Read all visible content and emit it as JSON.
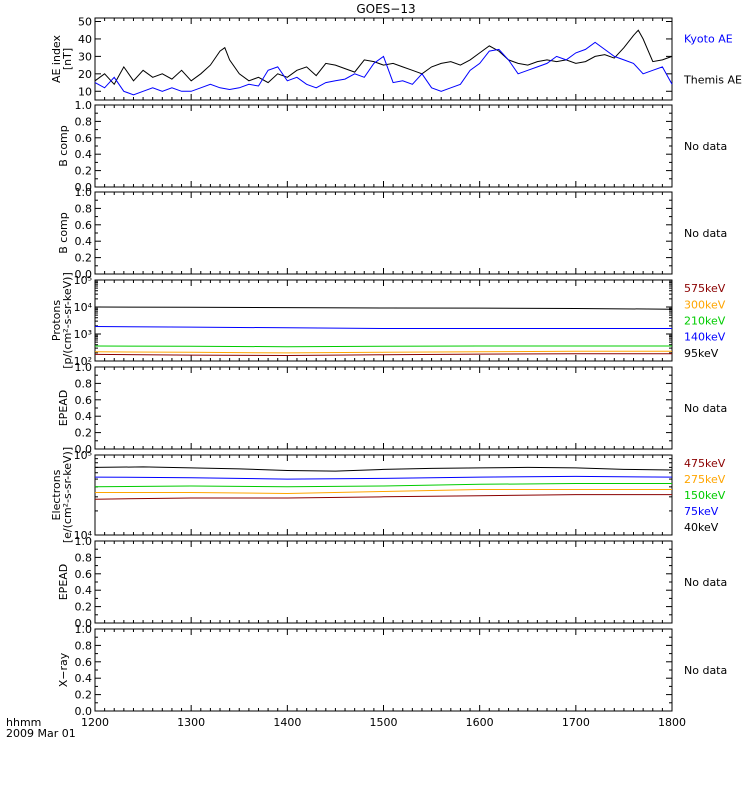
{
  "title": "GOES−13",
  "time_axis": {
    "label_line1": "hhmm",
    "label_line2": "2009 Mar 01",
    "ticks": [
      "1200",
      "1300",
      "1400",
      "1500",
      "1600",
      "1700",
      "1800"
    ],
    "range": [
      1200,
      1800
    ]
  },
  "panels": [
    {
      "id": "ae",
      "ylabel": [
        "AE index",
        "[nT]"
      ],
      "scale": "linear",
      "ylim": [
        5,
        52
      ],
      "ticks": [
        "10",
        "20",
        "30",
        "40",
        "50"
      ],
      "tick_values": [
        10,
        20,
        30,
        40,
        50
      ],
      "legend": [
        {
          "text": "Kyoto AE",
          "color": "#0000ff"
        },
        {
          "text": "Themis AE",
          "color": "#000000"
        }
      ],
      "no_data": ""
    },
    {
      "id": "bcomp1",
      "ylabel": [
        "B comp"
      ],
      "scale": "linear",
      "ylim": [
        0,
        1
      ],
      "ticks": [
        "0.0",
        "0.2",
        "0.4",
        "0.6",
        "0.8",
        "1.0"
      ],
      "tick_values": [
        0.0,
        0.2,
        0.4,
        0.6,
        0.8,
        1.0
      ],
      "legend": [],
      "no_data": "No data"
    },
    {
      "id": "bcomp2",
      "ylabel": [
        "B comp"
      ],
      "scale": "linear",
      "ylim": [
        0,
        1
      ],
      "ticks": [
        "0.0",
        "0.2",
        "0.4",
        "0.6",
        "0.8",
        "1.0"
      ],
      "tick_values": [
        0.0,
        0.2,
        0.4,
        0.6,
        0.8,
        1.0
      ],
      "legend": [],
      "no_data": "No data"
    },
    {
      "id": "protons",
      "ylabel": [
        "Protons",
        "[p/(cm²-s-sr-keV)]"
      ],
      "scale": "log",
      "ylim": [
        100,
        100000
      ],
      "ticks": [
        "10²",
        "10³",
        "10⁴",
        "10⁵"
      ],
      "tick_values": [
        100,
        1000,
        10000,
        100000
      ],
      "legend": [
        {
          "text": "575keV",
          "color": "#8b0000"
        },
        {
          "text": "300keV",
          "color": "#ffa500"
        },
        {
          "text": "210keV",
          "color": "#00cc00"
        },
        {
          "text": "140keV",
          "color": "#0000ff"
        },
        {
          "text": "95keV",
          "color": "#000000"
        }
      ],
      "no_data": ""
    },
    {
      "id": "epead1",
      "ylabel": [
        "EPEAD"
      ],
      "scale": "linear",
      "ylim": [
        0,
        1
      ],
      "ticks": [
        "0.0",
        "0.2",
        "0.4",
        "0.6",
        "0.8",
        "1.0"
      ],
      "tick_values": [
        0.0,
        0.2,
        0.4,
        0.6,
        0.8,
        1.0
      ],
      "legend": [],
      "no_data": "No data"
    },
    {
      "id": "electrons",
      "ylabel": [
        "Electrons",
        "[e/(cm²-s-sr-keV)]"
      ],
      "scale": "log",
      "ylim": [
        10000,
        100000
      ],
      "ticks": [
        "10⁴",
        "10⁵"
      ],
      "tick_values": [
        10000,
        100000
      ],
      "legend": [
        {
          "text": "475keV",
          "color": "#8b0000"
        },
        {
          "text": "275keV",
          "color": "#ffa500"
        },
        {
          "text": "150keV",
          "color": "#00cc00"
        },
        {
          "text": "75keV",
          "color": "#0000ff"
        },
        {
          "text": "40keV",
          "color": "#000000"
        }
      ],
      "no_data": ""
    },
    {
      "id": "epead2",
      "ylabel": [
        "EPEAD"
      ],
      "scale": "linear",
      "ylim": [
        0,
        1
      ],
      "ticks": [
        "0.0",
        "0.2",
        "0.4",
        "0.6",
        "0.8",
        "1.0"
      ],
      "tick_values": [
        0.0,
        0.2,
        0.4,
        0.6,
        0.8,
        1.0
      ],
      "legend": [],
      "no_data": "No data"
    },
    {
      "id": "xray",
      "ylabel": [
        "X−ray"
      ],
      "scale": "linear",
      "ylim": [
        0,
        1
      ],
      "ticks": [
        "0.0",
        "0.2",
        "0.4",
        "0.6",
        "0.8",
        "1.0"
      ],
      "tick_values": [
        0.0,
        0.2,
        0.4,
        0.6,
        0.8,
        1.0
      ],
      "legend": [],
      "no_data": "No data"
    }
  ],
  "chart_data": [
    {
      "type": "line",
      "panel": "ae",
      "title": "GOES−13",
      "ylabel": "AE index [nT]",
      "ylim": [
        5,
        52
      ],
      "xlim": [
        1200,
        1800
      ],
      "series": [
        {
          "name": "Themis AE",
          "color": "#000000",
          "x": [
            1200,
            1210,
            1220,
            1230,
            1240,
            1250,
            1260,
            1270,
            1280,
            1290,
            1300,
            1310,
            1320,
            1330,
            1335,
            1340,
            1350,
            1360,
            1370,
            1380,
            1390,
            1400,
            1410,
            1420,
            1430,
            1440,
            1450,
            1460,
            1470,
            1480,
            1490,
            1500,
            1510,
            1520,
            1530,
            1540,
            1550,
            1560,
            1570,
            1580,
            1590,
            1600,
            1610,
            1620,
            1630,
            1640,
            1650,
            1660,
            1670,
            1680,
            1690,
            1700,
            1710,
            1720,
            1730,
            1740,
            1750,
            1760,
            1765,
            1770,
            1780,
            1790,
            1800
          ],
          "y": [
            16,
            20,
            14,
            24,
            16,
            22,
            18,
            20,
            17,
            22,
            16,
            20,
            25,
            33,
            35,
            28,
            20,
            16,
            18,
            15,
            20,
            18,
            22,
            24,
            19,
            26,
            25,
            23,
            21,
            28,
            27,
            25,
            26,
            24,
            22,
            20,
            24,
            26,
            27,
            25,
            28,
            32,
            36,
            33,
            28,
            26,
            25,
            27,
            28,
            27,
            28,
            26,
            27,
            30,
            31,
            29,
            35,
            42,
            45,
            40,
            27,
            28,
            30
          ]
        },
        {
          "name": "Kyoto AE",
          "color": "#0000ff",
          "x": [
            1200,
            1210,
            1220,
            1230,
            1240,
            1250,
            1260,
            1270,
            1280,
            1290,
            1300,
            1310,
            1320,
            1330,
            1340,
            1350,
            1360,
            1370,
            1380,
            1390,
            1400,
            1410,
            1420,
            1430,
            1440,
            1450,
            1460,
            1470,
            1480,
            1490,
            1500,
            1510,
            1520,
            1530,
            1540,
            1550,
            1560,
            1570,
            1580,
            1590,
            1600,
            1610,
            1620,
            1630,
            1640,
            1650,
            1660,
            1670,
            1680,
            1690,
            1700,
            1710,
            1720,
            1730,
            1740,
            1750,
            1760,
            1770,
            1780,
            1790,
            1800
          ],
          "y": [
            15,
            12,
            18,
            10,
            8,
            10,
            12,
            10,
            12,
            10,
            10,
            12,
            14,
            12,
            11,
            12,
            14,
            13,
            22,
            24,
            16,
            18,
            14,
            12,
            15,
            16,
            17,
            20,
            18,
            26,
            30,
            15,
            16,
            14,
            20,
            12,
            10,
            12,
            14,
            22,
            26,
            33,
            34,
            28,
            20,
            22,
            24,
            26,
            30,
            28,
            32,
            34,
            38,
            34,
            30,
            28,
            26,
            20,
            22,
            24,
            14
          ]
        }
      ]
    },
    {
      "type": "line",
      "panel": "protons",
      "ylabel": "Protons [p/(cm²-s-sr-keV)]",
      "scale": "log",
      "ylim": [
        100,
        100000
      ],
      "xlim": [
        1200,
        1800
      ],
      "series": [
        {
          "name": "95keV",
          "color": "#000000",
          "x": [
            1200,
            1300,
            1400,
            1500,
            1600,
            1700,
            1800
          ],
          "y": [
            10000,
            9800,
            9500,
            9200,
            9100,
            8800,
            8300
          ]
        },
        {
          "name": "140keV",
          "color": "#0000ff",
          "x": [
            1200,
            1300,
            1400,
            1500,
            1600,
            1700,
            1800
          ],
          "y": [
            1900,
            1800,
            1700,
            1600,
            1600,
            1600,
            1600
          ]
        },
        {
          "name": "210keV",
          "color": "#00cc00",
          "x": [
            1200,
            1300,
            1400,
            1500,
            1600,
            1700,
            1800
          ],
          "y": [
            360,
            350,
            340,
            350,
            360,
            360,
            360
          ]
        },
        {
          "name": "300keV",
          "color": "#ffa500",
          "x": [
            1200,
            1300,
            1400,
            1500,
            1600,
            1700,
            1800
          ],
          "y": [
            220,
            210,
            200,
            210,
            220,
            230,
            230
          ]
        },
        {
          "name": "575keV",
          "color": "#8b0000",
          "x": [
            1200,
            1300,
            1400,
            1500,
            1600,
            1700,
            1800
          ],
          "y": [
            175,
            165,
            160,
            170,
            180,
            185,
            185
          ]
        }
      ]
    },
    {
      "type": "line",
      "panel": "electrons",
      "ylabel": "Electrons [e/(cm²-s-sr-keV)]",
      "scale": "log",
      "ylim": [
        10000,
        100000
      ],
      "xlim": [
        1200,
        1800
      ],
      "series": [
        {
          "name": "40keV",
          "color": "#000000",
          "x": [
            1200,
            1250,
            1300,
            1350,
            1400,
            1450,
            1500,
            1550,
            1600,
            1650,
            1700,
            1750,
            1800
          ],
          "y": [
            70000,
            71000,
            69000,
            67000,
            64000,
            63000,
            66000,
            68000,
            69000,
            70000,
            69000,
            66000,
            65000
          ]
        },
        {
          "name": "75keV",
          "color": "#0000ff",
          "x": [
            1200,
            1300,
            1400,
            1500,
            1600,
            1700,
            1800
          ],
          "y": [
            53000,
            52000,
            50000,
            51000,
            53000,
            54000,
            53000
          ]
        },
        {
          "name": "150keV",
          "color": "#00cc00",
          "x": [
            1200,
            1300,
            1400,
            1500,
            1600,
            1700,
            1800
          ],
          "y": [
            40000,
            41000,
            40000,
            41000,
            43000,
            44000,
            44000
          ]
        },
        {
          "name": "275keV",
          "color": "#ffa500",
          "x": [
            1200,
            1300,
            1400,
            1500,
            1600,
            1700,
            1800
          ],
          "y": [
            34000,
            34000,
            33000,
            35000,
            37000,
            37000,
            37000
          ]
        },
        {
          "name": "475keV",
          "color": "#8b0000",
          "x": [
            1200,
            1300,
            1400,
            1500,
            1600,
            1700,
            1800
          ],
          "y": [
            28000,
            29000,
            29000,
            30000,
            31000,
            32000,
            32000
          ]
        }
      ]
    }
  ]
}
